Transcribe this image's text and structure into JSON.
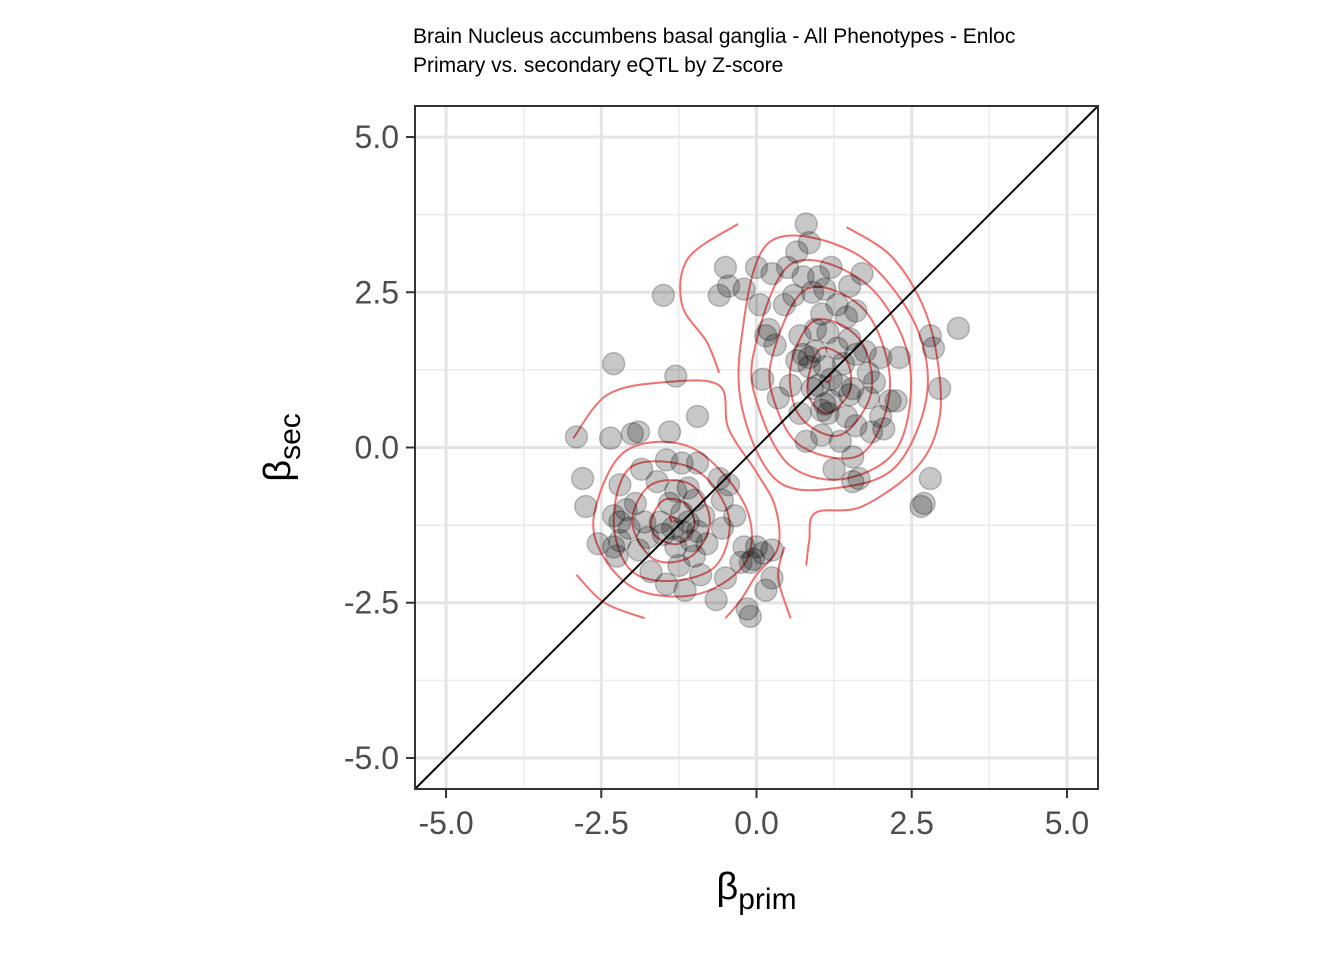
{
  "chart_data": {
    "type": "scatter",
    "title": "Brain Nucleus accumbens basal ganglia - All Phenotypes - Enloc",
    "subtitle": "Primary vs. secondary eQTL by Z-score",
    "xlabel": {
      "symbol": "β",
      "subscript": "prim"
    },
    "ylabel": {
      "symbol": "β",
      "subscript": "sec"
    },
    "xlim": [
      -5.5,
      5.5
    ],
    "ylim": [
      -5.5,
      5.5
    ],
    "x_ticks": [
      -5.0,
      -2.5,
      0.0,
      2.5,
      5.0
    ],
    "x_tick_labels": [
      "-5.0",
      "-2.5",
      "0.0",
      "2.5",
      "5.0"
    ],
    "y_ticks": [
      -5.0,
      -2.5,
      0.0,
      2.5,
      5.0
    ],
    "y_tick_labels": [
      "-5.0",
      "-2.5",
      "0.0",
      "2.5",
      "5.0"
    ],
    "grid": true,
    "reference_line": {
      "type": "identity",
      "color": "#000000"
    },
    "point_color": "#000000",
    "point_opacity": 0.22,
    "contour_color": "#f07070",
    "series": [
      {
        "points": [
          [
            -2.9,
            0.17
          ],
          [
            -2.8,
            -0.5
          ],
          [
            -2.75,
            -0.95
          ],
          [
            -2.55,
            -1.55
          ],
          [
            -2.35,
            0.15
          ],
          [
            -2.3,
            -1.1
          ],
          [
            -2.3,
            -1.6
          ],
          [
            -2.25,
            -1.75
          ],
          [
            -2.2,
            -0.6
          ],
          [
            -2.2,
            -1.2
          ],
          [
            -2.2,
            -1.5
          ],
          [
            -2.1,
            -1.0
          ],
          [
            -2.05,
            -1.3
          ],
          [
            -2.0,
            0.22
          ],
          [
            -1.95,
            -0.9
          ],
          [
            -1.9,
            0.25
          ],
          [
            -1.9,
            -1.65
          ],
          [
            -1.85,
            -0.35
          ],
          [
            -1.8,
            -1.2
          ],
          [
            -1.75,
            -1.45
          ],
          [
            -1.7,
            -2.0
          ],
          [
            -1.6,
            -0.55
          ],
          [
            -1.55,
            -1.2
          ],
          [
            -1.5,
            -1.4
          ],
          [
            -1.45,
            -0.2
          ],
          [
            -1.45,
            -2.2
          ],
          [
            -1.4,
            0.25
          ],
          [
            -1.4,
            -0.9
          ],
          [
            -1.35,
            -1.3
          ],
          [
            -1.3,
            -0.7
          ],
          [
            -1.3,
            -1.6
          ],
          [
            -1.25,
            -1.9
          ],
          [
            -1.2,
            -0.25
          ],
          [
            -1.2,
            -1.05
          ],
          [
            -1.2,
            -1.35
          ],
          [
            -1.15,
            -2.3
          ],
          [
            -1.1,
            -0.65
          ],
          [
            -1.1,
            -1.2
          ],
          [
            -1.05,
            -1.5
          ],
          [
            -1.0,
            -0.85
          ],
          [
            -1.0,
            -1.75
          ],
          [
            -0.95,
            -0.25
          ],
          [
            -0.95,
            -1.35
          ],
          [
            -0.9,
            -2.05
          ],
          [
            -0.85,
            -1.1
          ],
          [
            -0.8,
            -1.55
          ],
          [
            -0.65,
            -2.45
          ],
          [
            -0.6,
            -0.5
          ],
          [
            -0.55,
            -0.85
          ],
          [
            -0.55,
            -1.3
          ],
          [
            -0.5,
            -2.1
          ],
          [
            -0.45,
            -0.6
          ],
          [
            -0.35,
            -1.1
          ],
          [
            -0.25,
            -1.85
          ],
          [
            -0.2,
            -1.6
          ],
          [
            -0.15,
            -2.6
          ],
          [
            -0.1,
            -2.72
          ],
          [
            0.0,
            -1.6
          ],
          [
            0.1,
            -1.7
          ],
          [
            0.15,
            -2.3
          ],
          [
            0.25,
            -2.1
          ],
          [
            0.25,
            -1.65
          ],
          [
            -0.1,
            -1.85
          ],
          [
            -0.05,
            -1.8
          ],
          [
            -2.3,
            1.35
          ],
          [
            -1.3,
            1.15
          ],
          [
            -0.95,
            0.5
          ],
          [
            -1.5,
            2.45
          ],
          [
            -0.5,
            2.9
          ],
          [
            -0.6,
            2.45
          ],
          [
            -0.45,
            2.6
          ],
          [
            -0.2,
            2.55
          ],
          [
            0.0,
            2.9
          ],
          [
            0.05,
            2.3
          ],
          [
            0.1,
            1.1
          ],
          [
            0.15,
            1.8
          ],
          [
            0.2,
            1.9
          ],
          [
            0.25,
            2.8
          ],
          [
            0.3,
            1.65
          ],
          [
            0.35,
            0.8
          ],
          [
            0.45,
            2.3
          ],
          [
            0.5,
            2.9
          ],
          [
            0.55,
            1.0
          ],
          [
            0.6,
            2.45
          ],
          [
            0.65,
            3.15
          ],
          [
            0.65,
            1.4
          ],
          [
            0.7,
            0.55
          ],
          [
            0.7,
            1.8
          ],
          [
            0.75,
            2.75
          ],
          [
            0.75,
            1.5
          ],
          [
            0.8,
            0.1
          ],
          [
            0.8,
            3.6
          ],
          [
            0.85,
            3.3
          ],
          [
            0.85,
            1.3
          ],
          [
            0.85,
            1.45
          ],
          [
            0.9,
            2.5
          ],
          [
            0.9,
            0.95
          ],
          [
            0.95,
            1.9
          ],
          [
            0.95,
            1.55
          ],
          [
            1.0,
            2.75
          ],
          [
            1.0,
            1.0
          ],
          [
            1.05,
            2.15
          ],
          [
            1.05,
            0.6
          ],
          [
            1.05,
            0.2
          ],
          [
            1.1,
            1.3
          ],
          [
            1.1,
            0.7
          ],
          [
            1.1,
            2.55
          ],
          [
            1.15,
            1.85
          ],
          [
            1.15,
            0.55
          ],
          [
            1.2,
            2.9
          ],
          [
            1.2,
            1.1
          ],
          [
            1.2,
            0.75
          ],
          [
            1.25,
            -0.35
          ],
          [
            1.3,
            2.3
          ],
          [
            1.3,
            1.6
          ],
          [
            1.35,
            1.0
          ],
          [
            1.35,
            0.1
          ],
          [
            1.4,
            1.35
          ],
          [
            1.45,
            2.1
          ],
          [
            1.45,
            0.5
          ],
          [
            1.5,
            2.6
          ],
          [
            1.5,
            1.75
          ],
          [
            1.5,
            0.85
          ],
          [
            1.55,
            0.95
          ],
          [
            1.55,
            -0.15
          ],
          [
            1.55,
            -0.55
          ],
          [
            1.6,
            2.2
          ],
          [
            1.6,
            1.5
          ],
          [
            1.6,
            0.35
          ],
          [
            1.65,
            -0.5
          ],
          [
            1.7,
            2.8
          ],
          [
            1.75,
            1.55
          ],
          [
            1.8,
            1.2
          ],
          [
            1.8,
            0.8
          ],
          [
            1.85,
            0.25
          ],
          [
            1.9,
            1.05
          ],
          [
            2.0,
            0.5
          ],
          [
            2.0,
            1.45
          ],
          [
            2.05,
            0.3
          ],
          [
            2.15,
            0.75
          ],
          [
            2.25,
            0.75
          ],
          [
            2.3,
            1.45
          ],
          [
            2.65,
            -0.95
          ],
          [
            2.7,
            -0.9
          ],
          [
            2.8,
            1.8
          ],
          [
            2.8,
            -0.5
          ],
          [
            2.85,
            1.6
          ],
          [
            2.95,
            0.95
          ],
          [
            3.25,
            1.92
          ]
        ]
      }
    ],
    "density_contours": {
      "lower_cluster": {
        "center": [
          -1.35,
          -1.15
        ],
        "rings": [
          [
            [
              -1.35,
              -1.2
            ],
            [
              -1.3,
              -1.15
            ],
            [
              -1.4,
              -1.1
            ]
          ],
          [
            [
              -1.7,
              -1.2
            ],
            [
              -1.5,
              -0.85
            ],
            [
              -1.15,
              -0.9
            ],
            [
              -1.0,
              -1.25
            ],
            [
              -1.25,
              -1.55
            ],
            [
              -1.6,
              -1.45
            ]
          ],
          [
            [
              -2.0,
              -1.2
            ],
            [
              -1.7,
              -0.6
            ],
            [
              -1.05,
              -0.6
            ],
            [
              -0.75,
              -1.2
            ],
            [
              -1.05,
              -1.75
            ],
            [
              -1.65,
              -1.8
            ]
          ],
          [
            [
              -2.3,
              -1.15
            ],
            [
              -2.0,
              -0.3
            ],
            [
              -1.0,
              -0.35
            ],
            [
              -0.45,
              -1.1
            ],
            [
              -0.65,
              -1.9
            ],
            [
              -1.4,
              -2.15
            ],
            [
              -2.05,
              -1.95
            ]
          ],
          [
            [
              -2.6,
              -1.0
            ],
            [
              -2.1,
              -0.05
            ],
            [
              -1.05,
              0.0
            ],
            [
              -0.2,
              -0.9
            ],
            [
              -0.15,
              -1.8
            ],
            [
              -0.9,
              -2.35
            ],
            [
              -1.9,
              -2.3
            ],
            [
              -2.5,
              -1.7
            ]
          ]
        ],
        "open_curves": [
          [
            [
              -2.95,
              0.15
            ],
            [
              -2.4,
              0.85
            ],
            [
              -1.5,
              1.05
            ],
            [
              -0.6,
              1.0
            ],
            [
              -0.45,
              0.3
            ],
            [
              0.0,
              -0.4
            ],
            [
              0.3,
              -0.95
            ],
            [
              0.35,
              -1.6
            ],
            [
              0.0,
              -2.05
            ],
            [
              -0.25,
              -2.45
            ],
            [
              -0.5,
              -2.75
            ]
          ],
          [
            [
              -2.9,
              -2.05
            ],
            [
              -2.45,
              -2.5
            ],
            [
              -1.8,
              -2.75
            ]
          ],
          [
            [
              0.55,
              -2.75
            ],
            [
              0.35,
              -2.1
            ],
            [
              0.45,
              -1.6
            ]
          ]
        ]
      },
      "upper_cluster": {
        "center": [
          1.15,
          1.1
        ],
        "rings": [
          [
            [
              1.1,
              1.1
            ],
            [
              1.2,
              1.15
            ],
            [
              1.15,
              1.05
            ]
          ],
          [
            [
              0.85,
              1.2
            ],
            [
              1.05,
              1.6
            ],
            [
              1.45,
              1.4
            ],
            [
              1.5,
              0.9
            ],
            [
              1.15,
              0.55
            ],
            [
              0.85,
              0.8
            ]
          ],
          [
            [
              0.55,
              1.3
            ],
            [
              0.95,
              2.05
            ],
            [
              1.65,
              1.75
            ],
            [
              1.85,
              0.9
            ],
            [
              1.35,
              0.2
            ],
            [
              0.7,
              0.5
            ]
          ],
          [
            [
              0.25,
              1.45
            ],
            [
              0.8,
              2.55
            ],
            [
              1.75,
              2.2
            ],
            [
              2.15,
              1.0
            ],
            [
              1.7,
              -0.1
            ],
            [
              0.75,
              0.0
            ],
            [
              0.3,
              0.7
            ]
          ],
          [
            [
              -0.05,
              1.5
            ],
            [
              0.55,
              2.95
            ],
            [
              1.75,
              2.65
            ],
            [
              2.45,
              1.45
            ],
            [
              2.3,
              0.05
            ],
            [
              1.45,
              -0.5
            ],
            [
              0.55,
              -0.3
            ],
            [
              0.05,
              0.6
            ]
          ],
          [
            [
              -0.25,
              1.7
            ],
            [
              0.2,
              3.3
            ],
            [
              1.55,
              3.15
            ],
            [
              2.5,
              2.1
            ],
            [
              2.75,
              0.9
            ],
            [
              2.25,
              -0.3
            ],
            [
              1.3,
              -0.65
            ],
            [
              0.35,
              -0.55
            ],
            [
              -0.2,
              0.5
            ]
          ]
        ],
        "open_curves": [
          [
            [
              -0.3,
              3.6
            ],
            [
              -1.1,
              3.05
            ],
            [
              -1.2,
              2.3
            ],
            [
              -0.8,
              1.7
            ],
            [
              -0.6,
              1.2
            ]
          ],
          [
            [
              1.45,
              3.55
            ],
            [
              2.15,
              3.1
            ],
            [
              2.65,
              2.35
            ],
            [
              2.9,
              1.5
            ],
            [
              2.95,
              0.5
            ],
            [
              2.6,
              -0.3
            ],
            [
              1.7,
              -0.95
            ],
            [
              0.95,
              -1.05
            ],
            [
              0.85,
              -1.5
            ],
            [
              0.8,
              -1.9
            ]
          ]
        ]
      }
    }
  }
}
